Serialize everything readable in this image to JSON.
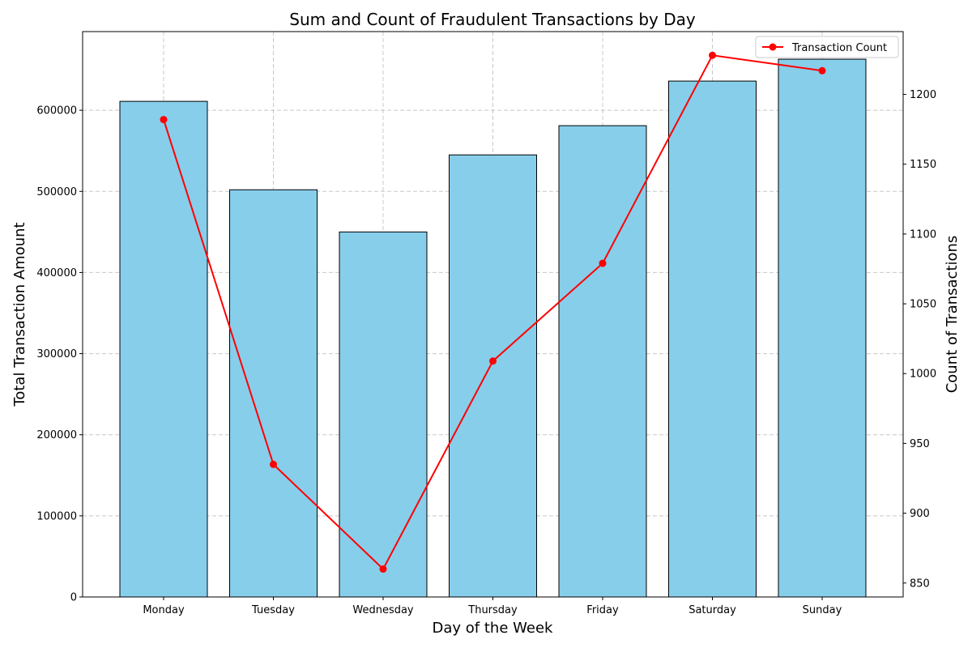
{
  "chart_data": {
    "type": "bar",
    "title": "Sum and Count of Fraudulent Transactions by Day",
    "xlabel": "Day of the Week",
    "ylabel": "Total Transaction Amount",
    "y2label": "Count of Transactions",
    "categories": [
      "Monday",
      "Tuesday",
      "Wednesday",
      "Thursday",
      "Friday",
      "Saturday",
      "Sunday"
    ],
    "series": [
      {
        "type": "bar",
        "axis": "left",
        "values": [
          611000,
          502000,
          450000,
          545000,
          581000,
          636000,
          663000
        ],
        "color": "#87CEEB",
        "edge_color": "#000000"
      },
      {
        "type": "line",
        "axis": "right",
        "name": "Transaction Count",
        "values": [
          1182,
          935,
          860,
          1009,
          1079,
          1228,
          1217
        ],
        "color": "#FF0000",
        "marker": "circle"
      }
    ],
    "ylim": [
      0,
      697000
    ],
    "y_ticks": [
      0,
      100000,
      200000,
      300000,
      400000,
      500000,
      600000
    ],
    "y2lim": [
      840,
      1245
    ],
    "y2_ticks": [
      850,
      900,
      950,
      1000,
      1050,
      1100,
      1150,
      1200
    ],
    "grid": true,
    "legend_position": "top-right"
  }
}
